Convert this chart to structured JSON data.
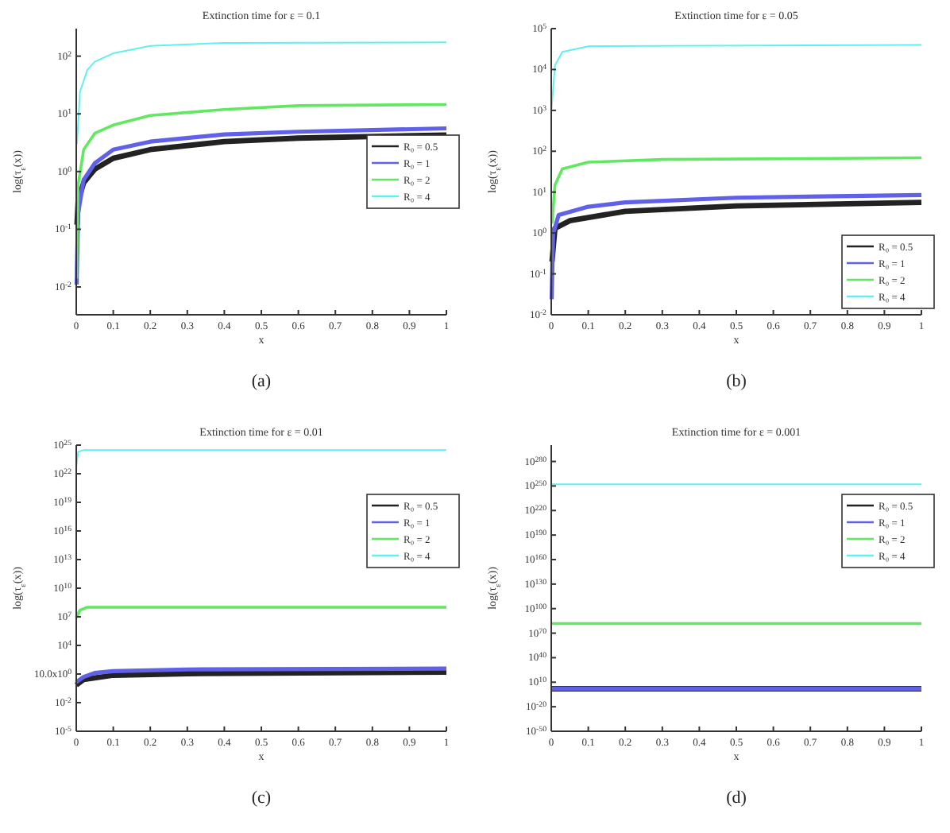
{
  "chart_data": [
    {
      "type": "line",
      "title": "Extinction time for ε = 0.1",
      "xlabel": "x",
      "ylabel": "log(τ$_{ε}$(x))",
      "annotations": [
        "(a)"
      ],
      "log": true,
      "legend": "right",
      "xlim": [
        0,
        1
      ],
      "xticks": [
        0,
        0.1,
        0.2,
        0.3,
        0.4,
        0.5,
        0.6,
        0.7,
        0.8,
        0.9,
        1
      ],
      "ylim": [
        0.0033,
        300
      ],
      "yticks": [
        {
          "value": 0.01,
          "label": "10$^{-2}$"
        },
        {
          "value": 0.1,
          "label": "10$^{-1}$"
        },
        {
          "value": 1,
          "label": "10$^{0}$"
        },
        {
          "value": 10,
          "label": "10$^{1}$"
        },
        {
          "value": 100,
          "label": "10$^{2}$"
        }
      ],
      "series": [
        {
          "name": "R₀ = 0.5",
          "color": "#222222",
          "x": [
            0.002,
            0.005,
            0.02,
            0.05,
            0.1,
            0.2,
            0.4,
            0.6,
            1
          ],
          "values": [
            0.12,
            0.3,
            0.64,
            1.1,
            1.7,
            2.4,
            3.3,
            3.8,
            4.3
          ]
        },
        {
          "name": "R₀ = 1",
          "color": "#6060e8",
          "x": [
            0.001,
            0.005,
            0.02,
            0.05,
            0.1,
            0.2,
            0.4,
            0.6,
            1
          ],
          "values": [
            0.011,
            0.19,
            0.72,
            1.39,
            2.4,
            3.3,
            4.4,
            4.9,
            5.6
          ]
        },
        {
          "name": "R₀ = 2",
          "color": "#60e860",
          "x": [
            0.001,
            0.005,
            0.02,
            0.05,
            0.1,
            0.2,
            0.4,
            0.6,
            1
          ],
          "values": [
            0.014,
            0.58,
            2.4,
            4.6,
            6.4,
            9.4,
            11.9,
            13.9,
            14.5
          ]
        },
        {
          "name": "R₀ = 4",
          "color": "#60f0f0",
          "x": [
            0.002,
            0.01,
            0.03,
            0.05,
            0.1,
            0.2,
            0.4,
            1
          ],
          "values": [
            3,
            24,
            58,
            80,
            112,
            150,
            170,
            173
          ]
        }
      ]
    },
    {
      "type": "line",
      "title": "Extinction time for ε = 0.05",
      "xlabel": "x",
      "ylabel": "log(τ$_{ε}$(x))",
      "annotations": [
        "(b)"
      ],
      "log": true,
      "legend": "bottom right",
      "xlim": [
        0,
        1
      ],
      "xticks": [
        0,
        0.1,
        0.2,
        0.3,
        0.4,
        0.5,
        0.6,
        0.7,
        0.8,
        0.9,
        1
      ],
      "ylim": [
        0.01,
        100000
      ],
      "yticks": [
        {
          "value": 0.01,
          "label": "10$^{-2}$"
        },
        {
          "value": 0.1,
          "label": "10$^{-1}$"
        },
        {
          "value": 1,
          "label": "10$^{0}$"
        },
        {
          "value": 10,
          "label": "10$^{1}$"
        },
        {
          "value": 100,
          "label": "10$^{2}$"
        },
        {
          "value": 1000,
          "label": "10$^{3}$"
        },
        {
          "value": 10000,
          "label": "10$^{4}$"
        },
        {
          "value": 100000,
          "label": "10$^{5}$"
        }
      ],
      "series": [
        {
          "name": "R₀ = 0.5",
          "color": "#222222",
          "x": [
            0.002,
            0.01,
            0.05,
            0.2,
            0.5,
            1
          ],
          "values": [
            0.2,
            1.3,
            2,
            3.4,
            4.6,
            5.6
          ]
        },
        {
          "name": "R₀ = 1",
          "color": "#6060e8",
          "x": [
            0.001,
            0.005,
            0.02,
            0.1,
            0.2,
            0.5,
            1
          ],
          "values": [
            0.024,
            0.94,
            2.75,
            4.4,
            5.6,
            7.3,
            8.5
          ]
        },
        {
          "name": "R₀ = 2",
          "color": "#60e860",
          "x": [
            0.002,
            0.01,
            0.03,
            0.1,
            0.3,
            1
          ],
          "values": [
            1.7,
            15,
            37,
            54,
            63,
            69
          ]
        },
        {
          "name": "R₀ = 4",
          "color": "#60f0f0",
          "x": [
            0.001,
            0.01,
            0.03,
            0.1,
            1
          ],
          "values": [
            1100,
            12600,
            27000,
            37000,
            40000
          ]
        }
      ]
    },
    {
      "type": "line",
      "title": "Extinction time for ε = 0.01",
      "xlabel": "x",
      "ylabel": "log(τ$_{ε}$(x))",
      "annotations": [
        "(c)"
      ],
      "log": true,
      "legend": "top right",
      "xlim": [
        0,
        1
      ],
      "xticks": [
        0,
        0.1,
        0.2,
        0.3,
        0.4,
        0.5,
        0.6,
        0.7,
        0.8,
        0.9,
        1
      ],
      "ylim": [
        1e-05,
        1e+25
      ],
      "yticks": [
        {
          "value": 1e-05,
          "label": "10$^{-5}$"
        },
        {
          "value": 0.01,
          "label": "10$^{-2}$"
        },
        {
          "value": 10,
          "label": "10.0x10$^{0}$"
        },
        {
          "value": 10000.0,
          "label": "10$^{4}$"
        },
        {
          "value": 10000000.0,
          "label": "10$^{7}$"
        },
        {
          "value": 10000000000.0,
          "label": "10$^{10}$"
        },
        {
          "value": 10000000000000.0,
          "label": "10$^{13}$"
        },
        {
          "value": 1e+16,
          "label": "10$^{16}$"
        },
        {
          "value": 1e+19,
          "label": "10$^{19}$"
        },
        {
          "value": 1e+22,
          "label": "10$^{22}$"
        },
        {
          "value": 1e+25,
          "label": "10$^{25}$"
        }
      ],
      "series": [
        {
          "name": "R₀ = 0.5",
          "color": "#222222",
          "x": [
            0,
            0.02,
            0.1,
            0.3,
            1
          ],
          "values": [
            0.7,
            2.7,
            7.5,
            11,
            16
          ]
        },
        {
          "name": "R₀ = 1",
          "color": "#6060e8",
          "x": [
            0,
            0.02,
            0.05,
            0.1,
            0.3,
            1
          ],
          "values": [
            1.4,
            5,
            13,
            20,
            30,
            37
          ]
        },
        {
          "name": "R₀ = 2",
          "color": "#60e860",
          "x": [
            0,
            0.01,
            0.03,
            1
          ],
          "values": [
            8000000.0,
            50000000.0,
            100000000.0,
            100000000.0
          ]
        },
        {
          "name": "R₀ = 4",
          "color": "#60f0f0",
          "x": [
            0,
            0.005,
            0.02,
            1
          ],
          "values": [
            5e+22,
            2e+24,
            3e+24,
            3e+24
          ]
        }
      ]
    },
    {
      "type": "line",
      "title": "Extinction time for ε = 0.001",
      "xlabel": "x",
      "ylabel": "log(τ$_{ε}$(x))",
      "annotations": [
        "(d)"
      ],
      "log": true,
      "legend": "top right",
      "xlim": [
        0,
        1
      ],
      "xticks": [
        0,
        0.1,
        0.2,
        0.3,
        0.4,
        0.5,
        0.6,
        0.7,
        0.8,
        0.9,
        1
      ],
      "ylim": [
        1e-50,
        1e+300
      ],
      "yticks": [
        {
          "value": 1e-50,
          "label": "10$^{-50}$"
        },
        {
          "value": 1e-20,
          "label": "10$^{-20}$"
        },
        {
          "value": 10000000000.0,
          "label": "10$^{10}$"
        },
        {
          "value": 1e+40,
          "label": "10$^{40}$"
        },
        {
          "value": 1e+70,
          "label": "10$^{70}$"
        },
        {
          "value": 1e+100,
          "label": "10$^{100}$"
        },
        {
          "value": 1e+130,
          "label": "10$^{130}$"
        },
        {
          "value": 1e+160,
          "label": "10$^{160}$"
        },
        {
          "value": 1e+190,
          "label": "10$^{190}$"
        },
        {
          "value": 1e+220,
          "label": "10$^{220}$"
        },
        {
          "value": 1e+250,
          "label": "10$^{250}$"
        },
        {
          "value": 1e+280,
          "label": "10$^{280}$"
        }
      ],
      "series": [
        {
          "name": "R₀ = 0.5",
          "color": "#222222",
          "x": [
            0,
            1
          ],
          "values": [
            100,
            100
          ]
        },
        {
          "name": "R₀ = 1",
          "color": "#6060e8",
          "x": [
            0,
            1
          ],
          "values": [
            150,
            150
          ]
        },
        {
          "name": "R₀ = 2",
          "color": "#60e860",
          "x": [
            0,
            1
          ],
          "values": [
            6e+81,
            6e+81
          ]
        },
        {
          "name": "R₀ = 4",
          "color": "#60f0f0",
          "x": [
            0,
            1
          ],
          "values": [
            1e+252,
            1e+252
          ]
        }
      ]
    }
  ]
}
